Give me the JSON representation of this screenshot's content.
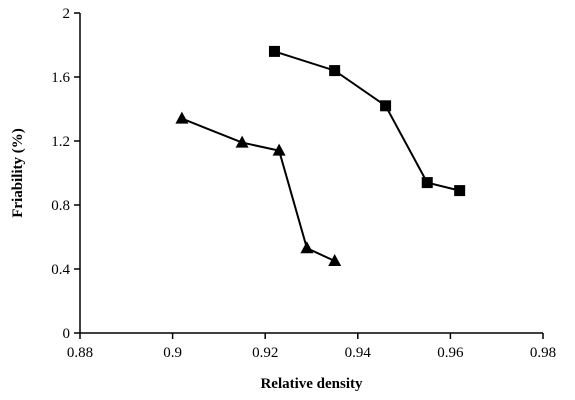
{
  "chart_data": {
    "type": "line",
    "title": "",
    "xlabel": "Relative density",
    "ylabel": "Friability (%)",
    "xlim": [
      0.88,
      0.98
    ],
    "ylim": [
      0,
      2
    ],
    "x_ticks": [
      0.88,
      0.9,
      0.92,
      0.94,
      0.96,
      0.98
    ],
    "y_ticks": [
      0,
      0.4,
      0.8,
      1.2,
      1.6,
      2
    ],
    "x_tick_labels": [
      "0.88",
      "0.9",
      "0.92",
      "0.94",
      "0.96",
      "0.98"
    ],
    "y_tick_labels": [
      "0",
      "0.4",
      "0.8",
      "1.2",
      "1.6",
      "2"
    ],
    "grid": false,
    "legend": "none",
    "series": [
      {
        "marker": "square",
        "color": "#000000",
        "x": [
          0.922,
          0.935,
          0.946,
          0.955,
          0.962
        ],
        "y": [
          1.76,
          1.64,
          1.42,
          0.94,
          0.89
        ]
      },
      {
        "marker": "triangle",
        "color": "#000000",
        "x": [
          0.902,
          0.915,
          0.923,
          0.929,
          0.935
        ],
        "y": [
          1.34,
          1.19,
          1.14,
          0.53,
          0.45
        ]
      }
    ]
  }
}
